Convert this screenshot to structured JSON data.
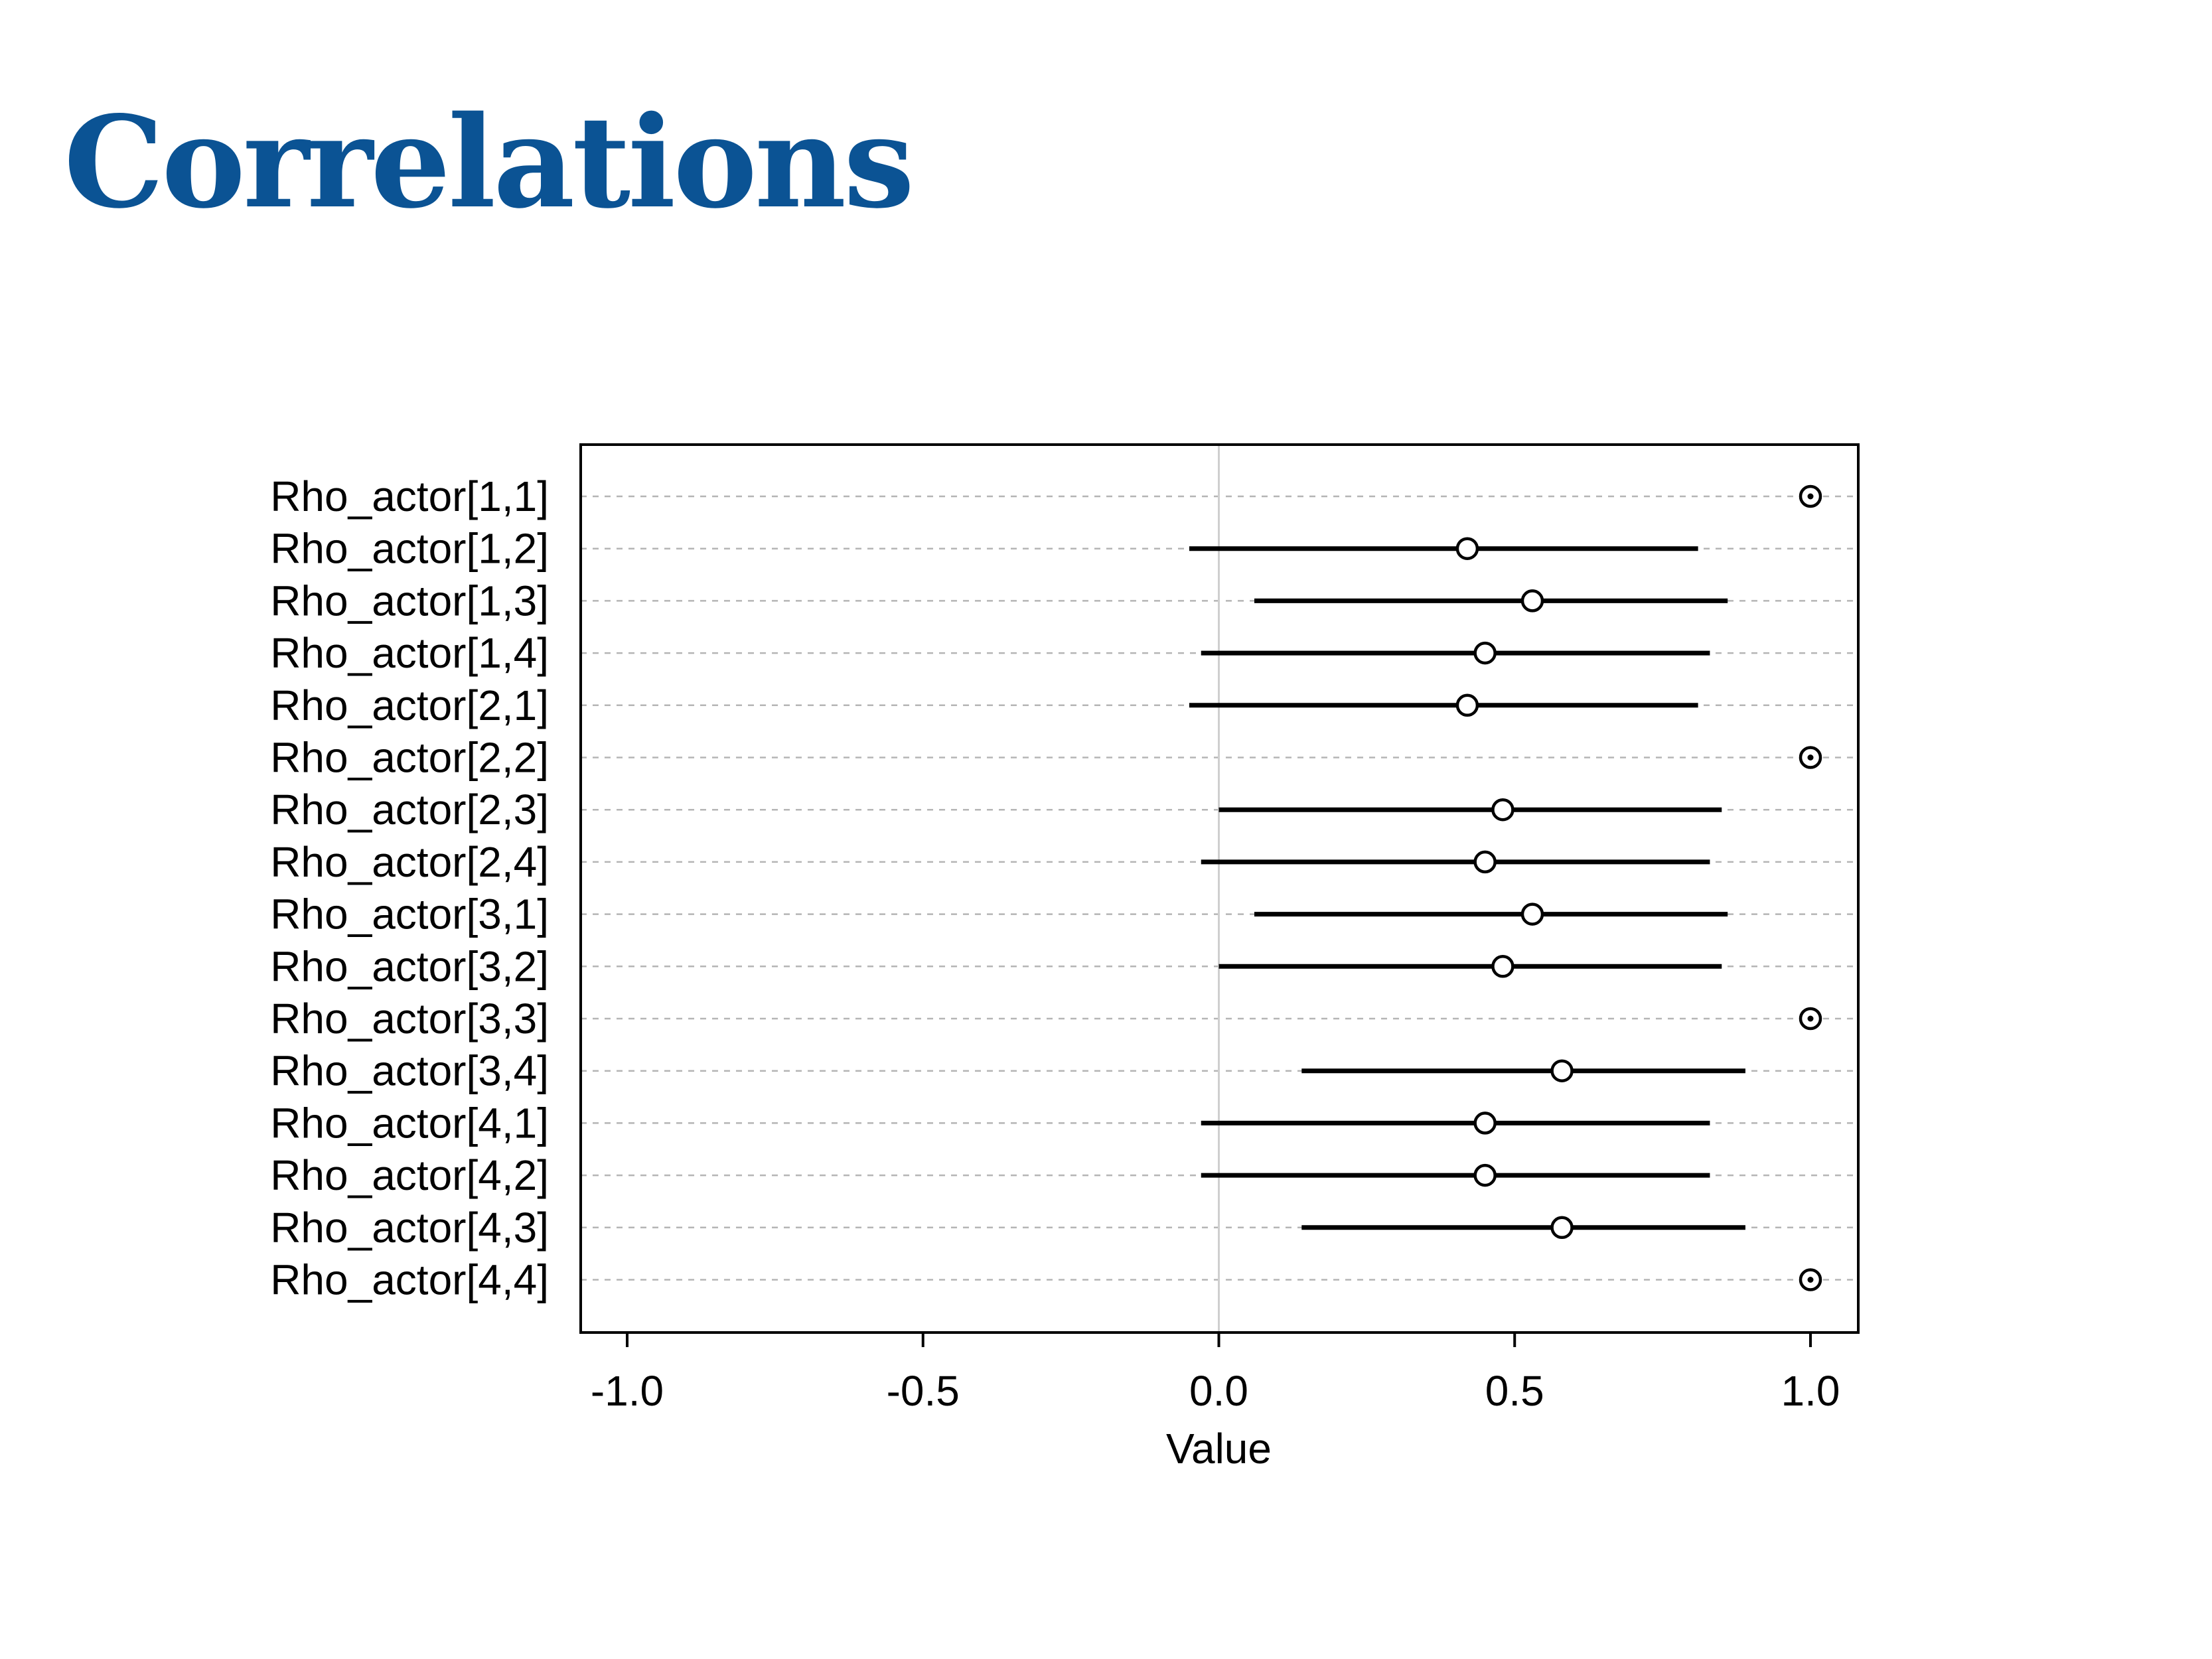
{
  "slide": {
    "title": "Correlations"
  },
  "chart_data": {
    "type": "scatter",
    "title": "",
    "xlabel": "Value",
    "ylabel": "",
    "xlim": [
      -1.08,
      1.08
    ],
    "x_ticks": [
      "-1.0",
      "-0.5",
      "0.0",
      "0.5",
      "1.0"
    ],
    "x_tick_values": [
      -1.0,
      -0.5,
      0.0,
      0.5,
      1.0
    ],
    "reference_line_x": 0.0,
    "grid": "dashed horizontal row guides",
    "series": [
      {
        "labels": [
          "Rho_actor[1,1]",
          "Rho_actor[1,2]",
          "Rho_actor[1,3]",
          "Rho_actor[1,4]",
          "Rho_actor[2,1]",
          "Rho_actor[2,2]",
          "Rho_actor[2,3]",
          "Rho_actor[2,4]",
          "Rho_actor[3,1]",
          "Rho_actor[3,2]",
          "Rho_actor[3,3]",
          "Rho_actor[3,4]",
          "Rho_actor[4,1]",
          "Rho_actor[4,2]",
          "Rho_actor[4,3]",
          "Rho_actor[4,4]"
        ],
        "mean": [
          1.0,
          0.42,
          0.53,
          0.45,
          0.42,
          1.0,
          0.48,
          0.45,
          0.53,
          0.48,
          1.0,
          0.58,
          0.45,
          0.45,
          0.58,
          1.0
        ],
        "lower": [
          1.0,
          -0.05,
          0.06,
          -0.03,
          -0.05,
          1.0,
          0.0,
          -0.03,
          0.06,
          0.0,
          1.0,
          0.14,
          -0.03,
          -0.03,
          0.14,
          1.0
        ],
        "upper": [
          1.0,
          0.81,
          0.86,
          0.83,
          0.81,
          1.0,
          0.85,
          0.83,
          0.86,
          0.85,
          1.0,
          0.89,
          0.83,
          0.83,
          0.89,
          1.0
        ]
      }
    ]
  }
}
